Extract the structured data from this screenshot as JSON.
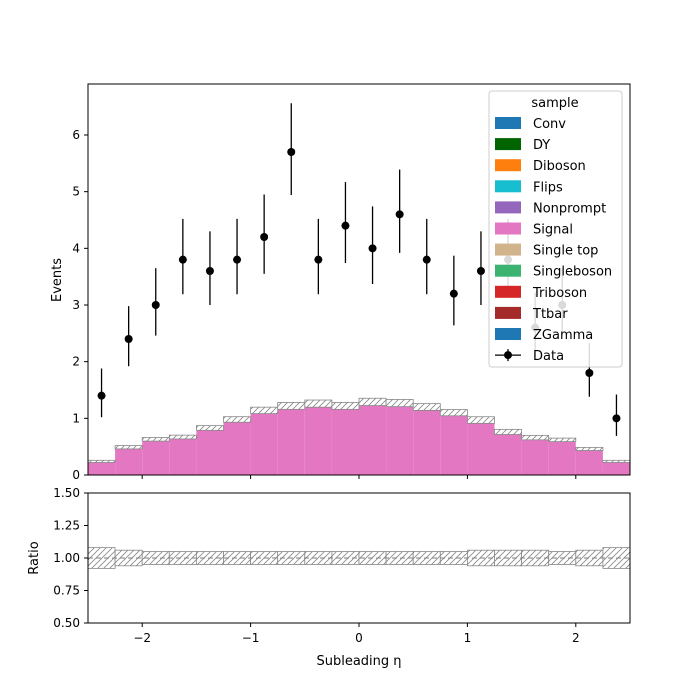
{
  "chart_data": [
    {
      "type": "bar",
      "stacked": true,
      "xlim": [
        -2.5,
        2.5
      ],
      "ylim": [
        0,
        6.9
      ],
      "ylabel": "Events",
      "yticks": [
        0,
        1,
        2,
        3,
        4,
        5,
        6
      ],
      "ytick_labels": [
        "0",
        "1",
        "2",
        "3",
        "4",
        "5",
        "6"
      ],
      "bin_edges": [
        -2.5,
        -2.25,
        -2.0,
        -1.75,
        -1.5,
        -1.25,
        -1.0,
        -0.75,
        -0.5,
        -0.25,
        0.0,
        0.25,
        0.5,
        0.75,
        1.0,
        1.25,
        1.5,
        1.75,
        2.0,
        2.25,
        2.5
      ],
      "legend": {
        "title": "sample",
        "position": "top-right",
        "entries": [
          "Conv",
          "DY",
          "Diboson",
          "Flips",
          "Nonprompt",
          "Signal",
          "Single top",
          "Singleboson",
          "Triboson",
          "Ttbar",
          "ZGamma",
          "Data"
        ]
      },
      "series": [
        {
          "name": "Conv",
          "color": "#1f77b4",
          "values": [
            0,
            0,
            0,
            0,
            0,
            0,
            0,
            0,
            0,
            0,
            0,
            0,
            0,
            0,
            0,
            0,
            0,
            0,
            0,
            0
          ]
        },
        {
          "name": "DY",
          "color": "#006400",
          "values": [
            0,
            0,
            0,
            0,
            0,
            0,
            0,
            0,
            0,
            0,
            0,
            0,
            0,
            0,
            0,
            0,
            0,
            0,
            0,
            0
          ]
        },
        {
          "name": "Diboson",
          "color": "#ff7f0e",
          "values": [
            0,
            0,
            0,
            0,
            0,
            0,
            0,
            0,
            0,
            0,
            0,
            0,
            0,
            0,
            0,
            0,
            0,
            0,
            0,
            0
          ]
        },
        {
          "name": "Flips",
          "color": "#17becf",
          "values": [
            0,
            0,
            0,
            0,
            0,
            0,
            0,
            0,
            0,
            0,
            0,
            0,
            0,
            0,
            0,
            0,
            0,
            0,
            0,
            0
          ]
        },
        {
          "name": "Nonprompt",
          "color": "#9467bd",
          "values": [
            0,
            0,
            0,
            0,
            0,
            0,
            0,
            0,
            0,
            0,
            0,
            0,
            0,
            0,
            0,
            0,
            0,
            0,
            0,
            0
          ]
        },
        {
          "name": "Signal",
          "color": "#e377c2",
          "values": [
            0.24,
            0.49,
            0.63,
            0.67,
            0.83,
            0.98,
            1.14,
            1.22,
            1.26,
            1.22,
            1.29,
            1.27,
            1.2,
            1.1,
            0.97,
            0.76,
            0.66,
            0.62,
            0.46,
            0.24
          ]
        },
        {
          "name": "Single top",
          "color": "#d2b48c",
          "values": [
            0,
            0,
            0,
            0,
            0,
            0,
            0,
            0,
            0,
            0,
            0,
            0,
            0,
            0,
            0,
            0,
            0,
            0,
            0,
            0
          ]
        },
        {
          "name": "Singleboson",
          "color": "#3cb371",
          "values": [
            0,
            0,
            0,
            0,
            0,
            0,
            0,
            0,
            0,
            0,
            0,
            0,
            0,
            0,
            0,
            0,
            0,
            0,
            0,
            0
          ]
        },
        {
          "name": "Triboson",
          "color": "#d62728",
          "values": [
            0,
            0,
            0,
            0,
            0,
            0,
            0,
            0,
            0,
            0,
            0,
            0,
            0,
            0,
            0,
            0,
            0,
            0,
            0,
            0
          ]
        },
        {
          "name": "Ttbar",
          "color": "#a52a2a",
          "values": [
            0,
            0,
            0,
            0,
            0,
            0,
            0,
            0,
            0,
            0,
            0,
            0,
            0,
            0,
            0,
            0,
            0,
            0,
            0,
            0
          ]
        },
        {
          "name": "ZGamma",
          "color": "#1f77b4",
          "values": [
            0,
            0,
            0,
            0,
            0,
            0,
            0,
            0,
            0,
            0,
            0,
            0,
            0,
            0,
            0,
            0,
            0,
            0,
            0,
            0
          ]
        }
      ],
      "uncertainty_rel": [
        0.08,
        0.06,
        0.05,
        0.05,
        0.05,
        0.05,
        0.05,
        0.05,
        0.05,
        0.05,
        0.05,
        0.05,
        0.05,
        0.05,
        0.06,
        0.06,
        0.06,
        0.05,
        0.06,
        0.08
      ],
      "data": {
        "name": "Data",
        "color": "#000000",
        "x": [
          -2.375,
          -2.125,
          -1.875,
          -1.625,
          -1.375,
          -1.125,
          -0.875,
          -0.625,
          -0.375,
          -0.125,
          0.125,
          0.375,
          0.625,
          0.875,
          1.125,
          1.375,
          1.625,
          1.875,
          2.125,
          2.375
        ],
        "y": [
          1.4,
          2.4,
          3.0,
          3.8,
          3.6,
          3.8,
          4.2,
          5.7,
          3.8,
          4.4,
          4.0,
          4.6,
          3.8,
          3.2,
          3.6,
          3.8,
          2.6,
          3.0,
          1.8,
          1.0
        ],
        "yerr_low": [
          0.38,
          0.48,
          0.54,
          0.61,
          0.6,
          0.61,
          0.65,
          0.76,
          0.61,
          0.66,
          0.63,
          0.68,
          0.61,
          0.56,
          0.6,
          0.61,
          0.51,
          0.54,
          0.42,
          0.31
        ],
        "yerr_high": [
          0.48,
          0.58,
          0.65,
          0.72,
          0.7,
          0.72,
          0.75,
          0.86,
          0.72,
          0.77,
          0.74,
          0.79,
          0.72,
          0.67,
          0.7,
          0.72,
          0.62,
          0.65,
          0.53,
          0.42
        ]
      }
    },
    {
      "type": "line",
      "xlim": [
        -2.5,
        2.5
      ],
      "ylim": [
        0.5,
        1.5
      ],
      "xlabel": "Subleading η",
      "ylabel": "Ratio",
      "xticks": [
        -2,
        -1,
        0,
        1,
        2
      ],
      "xtick_labels": [
        "−2",
        "−1",
        "0",
        "1",
        "2"
      ],
      "yticks": [
        0.5,
        0.75,
        1.0,
        1.25,
        1.5
      ],
      "ytick_labels": [
        "0.50",
        "0.75",
        "1.00",
        "1.25",
        "1.50"
      ],
      "reference_line": 1.0,
      "band_bin_edges": [
        -2.5,
        -2.25,
        -2.0,
        -1.75,
        -1.5,
        -1.25,
        -1.0,
        -0.75,
        -0.5,
        -0.25,
        0.0,
        0.25,
        0.5,
        0.75,
        1.0,
        1.25,
        1.5,
        1.75,
        2.0,
        2.25
      ],
      "band_low": [
        0.92,
        0.94,
        0.95,
        0.95,
        0.95,
        0.95,
        0.95,
        0.95,
        0.95,
        0.95,
        0.95,
        0.95,
        0.95,
        0.95,
        0.94,
        0.94,
        0.94,
        0.95,
        0.94,
        0.92
      ],
      "band_high": [
        1.08,
        1.06,
        1.05,
        1.05,
        1.05,
        1.05,
        1.05,
        1.05,
        1.05,
        1.05,
        1.05,
        1.05,
        1.05,
        1.05,
        1.06,
        1.06,
        1.06,
        1.05,
        1.06,
        1.08
      ]
    }
  ]
}
